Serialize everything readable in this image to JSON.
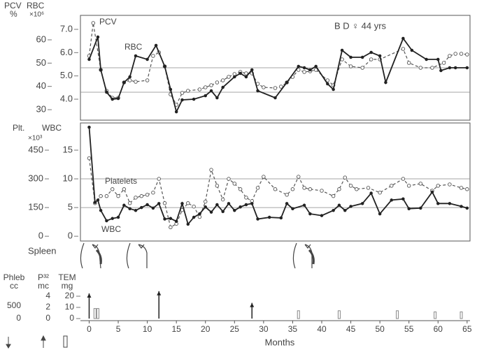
{
  "chart_data": [
    {
      "type": "line",
      "annotation": "B D ♀ 44 yrs",
      "y_label": "PCV",
      "y_unit": "%",
      "y2_label": "RBC",
      "y2_unit": "×10⁶",
      "xlim": [
        -1.5,
        65.5
      ],
      "ylim": [
        25.5,
        70.5
      ],
      "yticks": [
        30,
        40,
        50,
        60
      ],
      "y2lim": [
        3.1,
        7.6
      ],
      "y2ticks": [
        {
          "value": 4,
          "label": "4.0"
        },
        {
          "value": 5,
          "label": "5.0"
        },
        {
          "value": 6,
          "label": "6.0"
        },
        {
          "value": 7,
          "label": "7.0"
        }
      ],
      "hlines": [
        48,
        37.5
      ],
      "series": [
        {
          "name": "PCV",
          "color": "#555",
          "dashed": true,
          "marker": "open",
          "x": [
            0,
            0.7,
            2,
            3,
            4,
            5,
            6,
            7,
            8,
            10,
            11,
            12,
            13,
            14,
            15,
            16,
            17,
            19,
            20,
            21,
            22,
            23,
            24,
            25,
            26,
            27,
            28,
            29,
            30,
            32,
            33,
            34,
            35,
            36,
            37,
            38,
            39,
            41,
            42,
            43.5,
            45,
            47,
            48.5,
            50,
            54,
            55,
            57,
            59,
            61,
            62,
            63,
            64,
            65
          ],
          "values": [
            53.1,
            67.2,
            47.1,
            38.1,
            35.1,
            35.1,
            41.7,
            42.6,
            42,
            42.6,
            53.1,
            54.6,
            48.6,
            36.6,
            32.1,
            37.2,
            38.1,
            38.7,
            39.6,
            40.5,
            41.7,
            42.6,
            44.1,
            45.3,
            46.2,
            45.6,
            45.6,
            41.1,
            39.6,
            39.3,
            39.9,
            41.7,
            44.1,
            47.1,
            46.2,
            46.5,
            47.1,
            42.6,
            40.5,
            51.6,
            48.6,
            48,
            51.6,
            51.6,
            56.1,
            50.1,
            48,
            48,
            50.1,
            53.1,
            54,
            54,
            53.7
          ]
        },
        {
          "name": "RBC",
          "color": "#222",
          "dashed": false,
          "marker": "filled",
          "axis": "y2",
          "x": [
            0,
            1.5,
            2,
            3,
            4,
            5,
            6,
            7,
            8,
            10,
            11.5,
            13,
            14,
            15,
            16,
            18,
            20,
            21,
            22,
            23,
            25,
            26,
            27,
            28,
            29,
            32,
            34,
            36,
            37,
            38,
            39,
            41,
            42,
            43.5,
            45,
            47,
            48.5,
            50,
            51,
            54,
            55.5,
            58,
            60,
            60.5,
            62,
            63,
            65
          ],
          "values": [
            5.71,
            6.67,
            5.26,
            4.3,
            4.0,
            4.03,
            4.72,
            4.96,
            5.86,
            5.71,
            6.31,
            5.41,
            4.42,
            3.46,
            3.97,
            4.0,
            4.15,
            4.36,
            4.06,
            4.51,
            4.96,
            5.11,
            4.96,
            5.26,
            4.36,
            4.06,
            4.72,
            5.41,
            5.35,
            5.26,
            5.41,
            4.66,
            4.42,
            6.1,
            5.8,
            5.8,
            6.01,
            5.86,
            4.72,
            6.61,
            6.1,
            5.71,
            5.71,
            5.23,
            5.35,
            5.35,
            5.35
          ]
        }
      ]
    },
    {
      "type": "line",
      "y_label": "Plt.",
      "y2_label": "WBC",
      "y_unit": "×10³",
      "xlim": [
        -1.5,
        65.5
      ],
      "ylim": [
        -25,
        585
      ],
      "yticks": [
        0,
        150,
        300,
        450
      ],
      "y2lim": [
        -0.833,
        19.5
      ],
      "y2ticks": [
        0,
        5,
        10,
        15
      ],
      "hlines": [
        150,
        300
      ],
      "series": [
        {
          "name": "Platelets",
          "color": "#555",
          "dashed": true,
          "marker": "open",
          "x": [
            0,
            1,
            2,
            3,
            4,
            5,
            6,
            7,
            8,
            9,
            10,
            11,
            12,
            13,
            14,
            15,
            16,
            17,
            18,
            19,
            20,
            21,
            22,
            23,
            24,
            25,
            26,
            27,
            28,
            29,
            30,
            32,
            34,
            35,
            36,
            37,
            38,
            40,
            42,
            43,
            44,
            45,
            46,
            48,
            50,
            52,
            54,
            55,
            57,
            59,
            60,
            62,
            64,
            65
          ],
          "values": [
            408,
            173,
            210,
            210,
            246,
            210,
            246,
            173,
            202,
            210,
            217,
            228,
            300,
            173,
            47,
            65,
            137,
            173,
            155,
            101,
            181,
            347,
            264,
            192,
            300,
            275,
            246,
            202,
            184,
            253,
            311,
            246,
            217,
            246,
            311,
            253,
            246,
            238,
            210,
            246,
            307,
            264,
            246,
            253,
            228,
            264,
            300,
            264,
            275,
            238,
            264,
            271,
            253,
            246
          ]
        },
        {
          "name": "WBC",
          "color": "#222",
          "dashed": false,
          "marker": "filled",
          "axis": "y2",
          "x": [
            0,
            1,
            1.5,
            2,
            3,
            4,
            5,
            6,
            7,
            8,
            9,
            10,
            11,
            12,
            13,
            14,
            15,
            16,
            17,
            18,
            19,
            20,
            21,
            22,
            23,
            24,
            25,
            26,
            27,
            28,
            29,
            31,
            33,
            34,
            35,
            37,
            38,
            40,
            42,
            43,
            44,
            45,
            47,
            48.5,
            50,
            52,
            54,
            55,
            57,
            59,
            60,
            62,
            64,
            65
          ],
          "values": [
            19.0,
            5.9,
            6.3,
            4.5,
            2.7,
            3.1,
            3.3,
            5.4,
            4.8,
            4.5,
            5.0,
            5.5,
            4.9,
            5.7,
            3.0,
            3.1,
            2.6,
            5.7,
            2.1,
            3.3,
            3.9,
            5.1,
            4.2,
            5.5,
            4.3,
            5.7,
            4.5,
            5.1,
            5.5,
            5.7,
            3.0,
            3.3,
            3.2,
            5.7,
            4.8,
            5.4,
            3.9,
            3.6,
            4.5,
            5.4,
            4.5,
            5.2,
            5.7,
            7.5,
            3.9,
            6.3,
            6.5,
            4.8,
            4.9,
            7.7,
            5.7,
            5.7,
            5.2,
            4.9
          ]
        }
      ]
    },
    {
      "type": "events",
      "spleen_label": "Spleen",
      "x_label": "Months",
      "xlim": [
        -1.5,
        65.5
      ],
      "xticks": [
        0,
        5,
        10,
        15,
        20,
        25,
        30,
        35,
        40,
        45,
        50,
        55,
        60,
        65
      ],
      "axes": [
        {
          "label": "Phleb",
          "unit": "cc",
          "lim": [
            0,
            1278
          ],
          "ticks": [
            0,
            500
          ]
        },
        {
          "label": "P³²",
          "unit": "mc",
          "lim": [
            0,
            5.75
          ],
          "ticks": [
            0,
            2,
            4
          ]
        },
        {
          "label": "TEM",
          "unit": "mg",
          "lim": [
            0,
            28.75
          ],
          "ticks": [
            0,
            10,
            20
          ]
        }
      ],
      "series": [
        {
          "axis": 1,
          "kind": "arrow",
          "color": "#222",
          "x": [
            0,
            12,
            28
          ],
          "values": [
            4.5,
            4.9,
            2.8
          ]
        },
        {
          "axis": 2,
          "kind": "bar",
          "color": "#888",
          "x": [
            1,
            1.5,
            36,
            43,
            53,
            59.5,
            64
          ],
          "values": [
            9,
            9,
            7,
            7,
            7,
            6,
            6
          ]
        }
      ]
    }
  ]
}
